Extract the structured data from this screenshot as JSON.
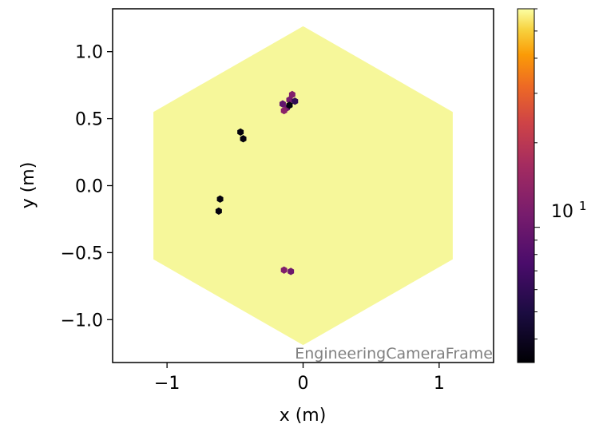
{
  "chart_data": {
    "type": "heatmap",
    "subtype": "hexagonal camera image",
    "xlabel": "x  (m)",
    "ylabel": "y  (m)",
    "xlim": [
      -1.4,
      1.4
    ],
    "ylim": [
      -1.32,
      1.32
    ],
    "x_ticks": [
      -1,
      0,
      1
    ],
    "x_tick_labels": [
      "−1",
      "0",
      "1"
    ],
    "y_ticks": [
      1.0,
      0.5,
      0.0,
      -0.5,
      -1.0
    ],
    "y_tick_labels": [
      "1.0",
      "0.5",
      "0.0",
      "−0.5",
      "−1.0"
    ],
    "frame_label": "EngineeringCameraFrame",
    "grid": false,
    "camera_outline": {
      "shape": "hexagon",
      "vertices": [
        [
          0.0,
          1.19
        ],
        [
          1.1,
          0.55
        ],
        [
          1.1,
          -0.55
        ],
        [
          0.0,
          -1.19
        ],
        [
          -1.1,
          -0.55
        ],
        [
          -1.1,
          0.55
        ]
      ]
    },
    "background_pixel_value": 60,
    "background_color": "#f6f79a",
    "hot_pixels": [
      {
        "x": -0.46,
        "y": 0.4,
        "value": 3.5
      },
      {
        "x": -0.44,
        "y": 0.35,
        "value": 3.5
      },
      {
        "x": -0.61,
        "y": -0.1,
        "value": 3.5
      },
      {
        "x": -0.62,
        "y": -0.19,
        "value": 3.5
      },
      {
        "x": -0.08,
        "y": 0.68,
        "value": 12
      },
      {
        "x": -0.1,
        "y": 0.64,
        "value": 11
      },
      {
        "x": -0.06,
        "y": 0.63,
        "value": 6
      },
      {
        "x": -0.15,
        "y": 0.61,
        "value": 9
      },
      {
        "x": -0.12,
        "y": 0.58,
        "value": 10
      },
      {
        "x": -0.14,
        "y": 0.56,
        "value": 13
      },
      {
        "x": -0.1,
        "y": 0.6,
        "value": 3.5
      },
      {
        "x": -0.14,
        "y": -0.63,
        "value": 12
      },
      {
        "x": -0.09,
        "y": -0.64,
        "value": 10
      }
    ],
    "colorbar": {
      "colormap": "inferno",
      "scale": "log",
      "vmin": 3.3,
      "vmax": 60,
      "major_ticks": [
        10
      ],
      "major_tick_labels": [
        "10",
        "1"
      ],
      "minor_ticks": [
        4,
        5,
        6,
        7,
        8,
        9,
        20,
        30,
        40,
        50,
        60
      ]
    }
  }
}
